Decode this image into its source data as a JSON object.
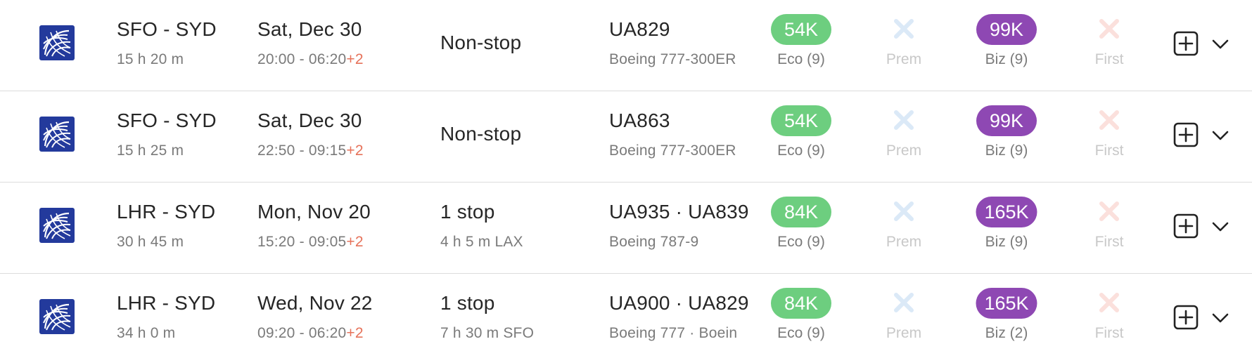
{
  "colors": {
    "eco_pill": "#6dce7f",
    "biz_pill": "#8e48b3",
    "prem_unavailable": "#dbe9f7",
    "first_unavailable": "#fbe0dc",
    "day_offset": "#e6725a",
    "united_logo": "#233a9c"
  },
  "icons": {
    "airline_logo": "united-airlines-logo-icon",
    "prem_unavailable": "x-icon",
    "first_unavailable": "x-icon",
    "add": "plus-square-icon",
    "expand": "chevron-down-icon"
  },
  "flights": [
    {
      "route": "SFO - SYD",
      "duration": "15 h 20 m",
      "date": "Sat, Dec 30",
      "times": "20:00 - 06:20",
      "day_offset": "+2",
      "stops": "Non-stop",
      "layover": "",
      "flight_numbers": "UA829",
      "aircraft": "Boeing 777-300ER",
      "eco_price": "54K",
      "eco_label": "Eco (9)",
      "prem_label": "Prem",
      "biz_price": "99K",
      "biz_label": "Biz (9)",
      "first_label": "First"
    },
    {
      "route": "SFO - SYD",
      "duration": "15 h 25 m",
      "date": "Sat, Dec 30",
      "times": "22:50 - 09:15",
      "day_offset": "+2",
      "stops": "Non-stop",
      "layover": "",
      "flight_numbers": "UA863",
      "aircraft": "Boeing 777-300ER",
      "eco_price": "54K",
      "eco_label": "Eco (9)",
      "prem_label": "Prem",
      "biz_price": "99K",
      "biz_label": "Biz (9)",
      "first_label": "First"
    },
    {
      "route": "LHR - SYD",
      "duration": "30 h 45 m",
      "date": "Mon, Nov 20",
      "times": "15:20 - 09:05",
      "day_offset": "+2",
      "stops": "1 stop",
      "layover": "4 h 5 m  LAX",
      "flight_numbers": "UA935  ·  UA839",
      "aircraft": "Boeing 787-9",
      "eco_price": "84K",
      "eco_label": "Eco (9)",
      "prem_label": "Prem",
      "biz_price": "165K",
      "biz_label": "Biz (9)",
      "first_label": "First"
    },
    {
      "route": "LHR - SYD",
      "duration": "34 h 0 m",
      "date": "Wed, Nov 22",
      "times": "09:20 - 06:20",
      "day_offset": "+2",
      "stops": "1 stop",
      "layover": "7 h 30 m  SFO",
      "flight_numbers": "UA900  ·  UA829",
      "aircraft": "Boeing 777  ·  Boein",
      "eco_price": "84K",
      "eco_label": "Eco (9)",
      "prem_label": "Prem",
      "biz_price": "165K",
      "biz_label": "Biz (2)",
      "first_label": "First"
    }
  ]
}
